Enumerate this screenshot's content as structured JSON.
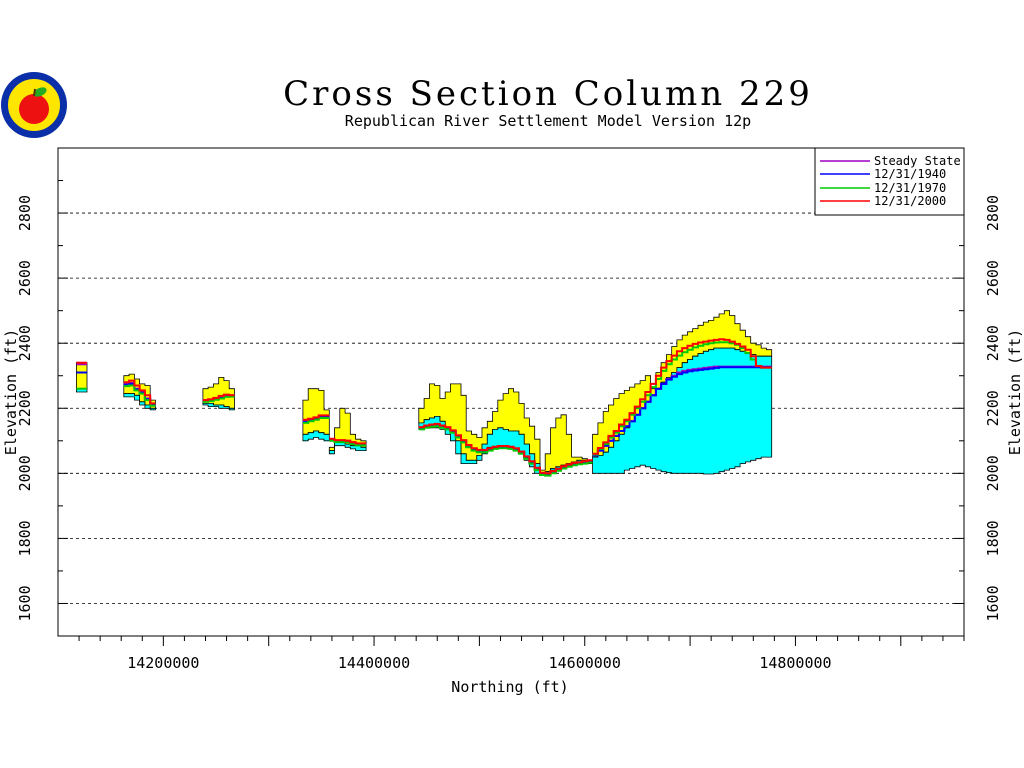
{
  "chart_data": {
    "type": "area",
    "title": "Cross Section Column 229",
    "subtitle": "Republican River Settlement Model Version 12p",
    "xlabel": "Northing (ft)",
    "ylabel": "Elevation (ft)",
    "xlim": [
      14100000,
      14960000
    ],
    "ylim": [
      1500,
      3000
    ],
    "x_ticks": [
      14200000,
      14400000,
      14600000,
      14800000
    ],
    "y_ticks": [
      1600,
      1800,
      2000,
      2200,
      2400,
      2600,
      2800
    ],
    "grid": "horizontal dashed",
    "legend_position": "top-right",
    "colors": {
      "upper_layer": "#ffff00",
      "lower_layer": "#00ffff",
      "steady_state": "#a000c0",
      "y1940": "#0000ff",
      "y1970": "#00cc00",
      "y2000": "#ff0000"
    },
    "legend": [
      {
        "label": "Steady State",
        "color": "#a000c0"
      },
      {
        "label": "12/31/1940",
        "color": "#0000ff"
      },
      {
        "label": "12/31/1970",
        "color": "#00cc00"
      },
      {
        "label": "12/31/2000",
        "color": "#ff0000"
      }
    ],
    "segments": [
      {
        "x": [
          14120000,
          14125000
        ],
        "top": [
          2340,
          2340
        ],
        "mid": [
          2260,
          2260
        ],
        "bottom": [
          2250,
          2250
        ],
        "steady_state": [
          2335,
          2335
        ],
        "y1940": [
          2310,
          2310
        ],
        "y1970": [
          2260,
          2260
        ],
        "y2000": [
          2340,
          2340
        ]
      },
      {
        "x": [
          14165000,
          14170000,
          14175000,
          14180000,
          14185000,
          14190000
        ],
        "top": [
          2300,
          2305,
          2290,
          2275,
          2270,
          2225
        ],
        "mid": [
          2245,
          2245,
          2240,
          2220,
          2210,
          2200
        ],
        "bottom": [
          2235,
          2235,
          2225,
          2210,
          2200,
          2195
        ],
        "steady_state": [
          2275,
          2278,
          2260,
          2250,
          2230,
          2210
        ],
        "y1940": [
          2272,
          2275,
          2258,
          2248,
          2228,
          2210
        ],
        "y1970": [
          2268,
          2270,
          2255,
          2245,
          2225,
          2208
        ],
        "y2000": [
          2280,
          2285,
          2270,
          2255,
          2240,
          2215
        ]
      },
      {
        "x": [
          14240000,
          14245000,
          14250000,
          14255000,
          14260000,
          14265000
        ],
        "top": [
          2260,
          2265,
          2275,
          2295,
          2285,
          2260
        ],
        "mid": [
          2215,
          2215,
          2210,
          2210,
          2205,
          2200
        ],
        "bottom": [
          2210,
          2205,
          2205,
          2200,
          2200,
          2195
        ],
        "steady_state": [
          2225,
          2225,
          2230,
          2235,
          2240,
          2240
        ],
        "y1940": [
          2222,
          2225,
          2228,
          2232,
          2238,
          2238
        ],
        "y1970": [
          2220,
          2222,
          2226,
          2230,
          2235,
          2236
        ],
        "y2000": [
          2225,
          2228,
          2232,
          2238,
          2242,
          2240
        ]
      },
      {
        "x": [
          14335000,
          14340000,
          14345000,
          14350000,
          14355000
        ],
        "top": [
          2225,
          2260,
          2260,
          2255,
          2195
        ],
        "mid": [
          2120,
          2125,
          2130,
          2125,
          2120
        ],
        "bottom": [
          2100,
          2105,
          2110,
          2105,
          2100
        ],
        "steady_state": [
          2160,
          2165,
          2170,
          2175,
          2175
        ],
        "y1940": [
          2158,
          2162,
          2168,
          2172,
          2172
        ],
        "y1970": [
          2155,
          2160,
          2165,
          2170,
          2170
        ],
        "y2000": [
          2165,
          2168,
          2172,
          2178,
          2178
        ]
      },
      {
        "x": [
          14360000,
          14365000,
          14370000,
          14375000,
          14380000,
          14385000,
          14390000
        ],
        "top": [
          2080,
          2140,
          2200,
          2185,
          2120,
          2105,
          2100
        ],
        "mid": [
          2070,
          2095,
          2095,
          2090,
          2085,
          2085,
          2080
        ],
        "bottom": [
          2060,
          2085,
          2085,
          2080,
          2075,
          2070,
          2070
        ],
        "steady_state": [
          2105,
          2100,
          2100,
          2100,
          2095,
          2090,
          2090
        ],
        "y1940": [
          2103,
          2098,
          2098,
          2098,
          2093,
          2088,
          2088
        ],
        "y1970": [
          2100,
          2096,
          2096,
          2096,
          2090,
          2086,
          2086
        ],
        "y2000": [
          2106,
          2102,
          2102,
          2100,
          2096,
          2092,
          2092
        ]
      },
      {
        "x": [
          14445000,
          14450000,
          14455000,
          14460000,
          14465000,
          14470000,
          14475000,
          14480000,
          14485000,
          14490000,
          14495000,
          14500000,
          14505000,
          14510000,
          14515000,
          14520000,
          14525000,
          14530000,
          14535000,
          14540000,
          14545000,
          14550000,
          14555000,
          14560000,
          14565000,
          14570000,
          14575000,
          14580000,
          14585000,
          14590000,
          14595000,
          14600000,
          14605000
        ],
        "top": [
          2200,
          2230,
          2275,
          2270,
          2230,
          2250,
          2275,
          2275,
          2240,
          2130,
          2120,
          2110,
          2140,
          2160,
          2190,
          2225,
          2245,
          2260,
          2250,
          2215,
          2170,
          2145,
          2105,
          2010,
          2060,
          2140,
          2170,
          2180,
          2120,
          2050,
          2050,
          2045,
          2040
        ],
        "mid": [
          2155,
          2165,
          2170,
          2175,
          2160,
          2140,
          2130,
          2100,
          2060,
          2040,
          2040,
          2055,
          2090,
          2120,
          2135,
          2140,
          2135,
          2130,
          2130,
          2120,
          2090,
          2060,
          2030,
          2000,
          2005,
          2015,
          2020,
          2025,
          2030,
          2035,
          2040,
          2040,
          2035
        ],
        "bottom": [
          2135,
          2140,
          2140,
          2140,
          2135,
          2120,
          2100,
          2060,
          2030,
          2030,
          2030,
          2040,
          2060,
          2080,
          2080,
          2080,
          2080,
          2075,
          2070,
          2060,
          2040,
          2020,
          2000,
          1995,
          2000,
          2010,
          2015,
          2020,
          2025,
          2030,
          2035,
          2035,
          2030
        ],
        "steady_state": [
          2140,
          2145,
          2148,
          2150,
          2145,
          2140,
          2130,
          2115,
          2100,
          2085,
          2075,
          2070,
          2070,
          2075,
          2080,
          2082,
          2082,
          2080,
          2075,
          2065,
          2050,
          2035,
          2015,
          2000,
          1998,
          2005,
          2012,
          2020,
          2025,
          2030,
          2032,
          2035,
          2038
        ],
        "y1940": [
          2138,
          2143,
          2146,
          2148,
          2143,
          2138,
          2128,
          2113,
          2098,
          2083,
          2073,
          2068,
          2068,
          2073,
          2078,
          2080,
          2080,
          2078,
          2073,
          2063,
          2048,
          2033,
          2013,
          1998,
          1996,
          2003,
          2010,
          2018,
          2023,
          2028,
          2030,
          2033,
          2036
        ],
        "y1970": [
          2135,
          2140,
          2143,
          2145,
          2140,
          2135,
          2125,
          2110,
          2095,
          2080,
          2070,
          2065,
          2065,
          2070,
          2075,
          2077,
          2077,
          2075,
          2070,
          2060,
          2045,
          2030,
          2010,
          1995,
          1993,
          2000,
          2008,
          2015,
          2020,
          2025,
          2028,
          2030,
          2033
        ],
        "y2000": [
          2142,
          2147,
          2150,
          2152,
          2147,
          2142,
          2132,
          2117,
          2102,
          2087,
          2077,
          2072,
          2072,
          2077,
          2082,
          2084,
          2084,
          2082,
          2077,
          2067,
          2052,
          2037,
          2017,
          2002,
          2000,
          2007,
          2014,
          2022,
          2027,
          2032,
          2034,
          2037,
          2040
        ]
      },
      {
        "x": [
          14610000,
          14615000,
          14620000,
          14625000,
          14630000,
          14635000,
          14640000,
          14645000,
          14650000,
          14655000,
          14660000,
          14665000,
          14670000,
          14675000,
          14680000,
          14685000,
          14690000,
          14695000,
          14700000,
          14705000,
          14710000,
          14715000,
          14720000,
          14725000,
          14730000,
          14735000,
          14740000,
          14745000,
          14750000,
          14755000,
          14760000,
          14765000,
          14770000,
          14775000
        ],
        "top": [
          2120,
          2155,
          2190,
          2210,
          2230,
          2245,
          2255,
          2265,
          2275,
          2285,
          2300,
          2260,
          2310,
          2340,
          2365,
          2390,
          2410,
          2425,
          2435,
          2445,
          2455,
          2465,
          2470,
          2480,
          2490,
          2500,
          2485,
          2460,
          2440,
          2420,
          2400,
          2395,
          2385,
          2380
        ],
        "mid": [
          2050,
          2055,
          2065,
          2080,
          2100,
          2120,
          2140,
          2160,
          2180,
          2200,
          2220,
          2240,
          2260,
          2280,
          2295,
          2310,
          2325,
          2340,
          2350,
          2360,
          2368,
          2375,
          2380,
          2385,
          2385,
          2385,
          2385,
          2380,
          2375,
          2370,
          2365,
          2360,
          2360,
          2360
        ],
        "bottom": [
          2000,
          2000,
          2000,
          2000,
          2000,
          2000,
          2010,
          2015,
          2020,
          2025,
          2020,
          2015,
          2010,
          2005,
          2002,
          2000,
          2000,
          2000,
          2000,
          2000,
          2000,
          1998,
          1998,
          2000,
          2005,
          2010,
          2015,
          2020,
          2030,
          2035,
          2040,
          2045,
          2050,
          2050
        ],
        "steady_state": [
          2055,
          2070,
          2085,
          2100,
          2115,
          2130,
          2145,
          2160,
          2180,
          2200,
          2220,
          2240,
          2260,
          2275,
          2290,
          2300,
          2310,
          2315,
          2318,
          2320,
          2322,
          2324,
          2326,
          2328,
          2328,
          2328,
          2328,
          2328,
          2328,
          2328,
          2328,
          2328,
          2328,
          2328
        ],
        "y1940": [
          2055,
          2070,
          2085,
          2100,
          2115,
          2130,
          2145,
          2160,
          2180,
          2200,
          2220,
          2240,
          2260,
          2275,
          2288,
          2297,
          2305,
          2310,
          2314,
          2316,
          2318,
          2320,
          2322,
          2324,
          2326,
          2326,
          2326,
          2326,
          2326,
          2326,
          2326,
          2326,
          2326,
          2326
        ],
        "y1970": [
          2058,
          2075,
          2090,
          2110,
          2125,
          2145,
          2160,
          2180,
          2200,
          2220,
          2240,
          2265,
          2290,
          2315,
          2335,
          2350,
          2362,
          2372,
          2380,
          2387,
          2392,
          2397,
          2400,
          2402,
          2403,
          2403,
          2400,
          2395,
          2385,
          2370,
          2350,
          2330,
          2325,
          2325
        ],
        "y2000": [
          2060,
          2078,
          2095,
          2115,
          2130,
          2150,
          2165,
          2185,
          2205,
          2228,
          2250,
          2275,
          2300,
          2325,
          2345,
          2362,
          2375,
          2385,
          2392,
          2398,
          2402,
          2405,
          2408,
          2410,
          2412,
          2410,
          2405,
          2398,
          2390,
          2380,
          2360,
          2330,
          2325,
          2325
        ]
      }
    ]
  }
}
